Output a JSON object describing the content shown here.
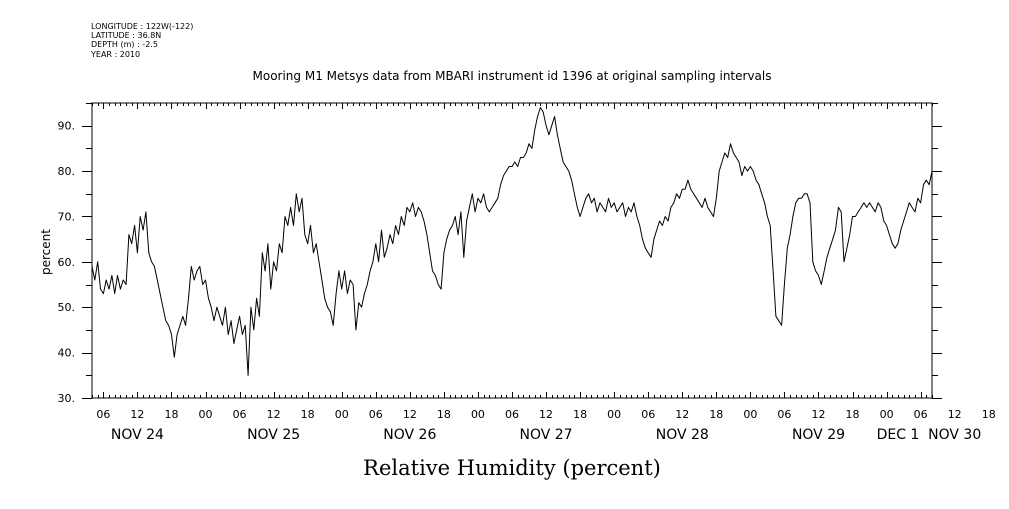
{
  "header": {
    "longitude": "LONGITUDE : 122W(-122)",
    "latitude": "LATITUDE : 36.8N",
    "depth": "DEPTH (m) : -2.5",
    "year": "YEAR : 2010"
  },
  "chart_data": {
    "type": "line",
    "title": "Mooring M1 Metsys data from MBARI instrument id 1396 at original sampling intervals",
    "ylabel": "percent",
    "xlabel": "Relative Humidity (percent)",
    "ylim": [
      30,
      95
    ],
    "xlim_hours_from_nov24_00": [
      4,
      152
    ],
    "y_ticks": [
      "30.",
      "40.",
      "50.",
      "60.",
      "70.",
      "80.",
      "90."
    ],
    "x_hour_ticks": [
      "06",
      "12",
      "18",
      "00",
      "06",
      "12",
      "18",
      "00",
      "06",
      "12",
      "18",
      "00",
      "06",
      "12",
      "18",
      "00",
      "06",
      "12",
      "18",
      "00",
      "06",
      "12",
      "18",
      "00",
      "06",
      "12",
      "18",
      "00",
      "06"
    ],
    "x_day_labels": [
      "NOV 24",
      "NOV 25",
      "NOV 26",
      "NOV 27",
      "NOV 28",
      "NOV 29",
      "NOV 30",
      "DEC 1"
    ],
    "grid": false,
    "series": [
      {
        "values": [
          [
            4.0,
            59
          ],
          [
            4.5,
            56
          ],
          [
            5.0,
            60
          ],
          [
            5.5,
            54
          ],
          [
            6.0,
            53
          ],
          [
            6.5,
            56
          ],
          [
            7.0,
            54
          ],
          [
            7.5,
            57
          ],
          [
            8.0,
            53
          ],
          [
            8.5,
            57
          ],
          [
            9.0,
            54
          ],
          [
            9.5,
            56
          ],
          [
            10.0,
            55
          ],
          [
            10.5,
            66
          ],
          [
            11.0,
            64
          ],
          [
            11.5,
            68
          ],
          [
            12.0,
            62
          ],
          [
            12.5,
            70
          ],
          [
            13.0,
            67
          ],
          [
            13.5,
            71
          ],
          [
            14.0,
            62
          ],
          [
            14.5,
            60
          ],
          [
            15.0,
            59
          ],
          [
            15.5,
            56
          ],
          [
            16.0,
            53
          ],
          [
            16.5,
            50
          ],
          [
            17.0,
            47
          ],
          [
            17.5,
            46
          ],
          [
            18.0,
            44
          ],
          [
            18.5,
            39
          ],
          [
            19.0,
            44
          ],
          [
            19.5,
            46
          ],
          [
            20.0,
            48
          ],
          [
            20.5,
            46
          ],
          [
            21.0,
            52
          ],
          [
            21.5,
            59
          ],
          [
            22.0,
            56
          ],
          [
            22.5,
            58
          ],
          [
            23.0,
            59
          ],
          [
            23.5,
            55
          ],
          [
            24.0,
            56
          ],
          [
            24.5,
            52
          ],
          [
            25.0,
            50
          ],
          [
            25.5,
            47
          ],
          [
            26.0,
            50
          ],
          [
            26.5,
            48
          ],
          [
            27.0,
            46
          ],
          [
            27.5,
            50
          ],
          [
            28.0,
            44
          ],
          [
            28.5,
            47
          ],
          [
            29.0,
            42
          ],
          [
            29.5,
            45
          ],
          [
            30.0,
            48
          ],
          [
            30.5,
            44
          ],
          [
            31.0,
            46
          ],
          [
            31.5,
            35
          ],
          [
            32.0,
            50
          ],
          [
            32.5,
            45
          ],
          [
            33.0,
            52
          ],
          [
            33.5,
            48
          ],
          [
            34.0,
            62
          ],
          [
            34.5,
            58
          ],
          [
            35.0,
            64
          ],
          [
            35.5,
            54
          ],
          [
            36.0,
            60
          ],
          [
            36.5,
            58
          ],
          [
            37.0,
            64
          ],
          [
            37.5,
            62
          ],
          [
            38.0,
            70
          ],
          [
            38.5,
            68
          ],
          [
            39.0,
            72
          ],
          [
            39.5,
            68
          ],
          [
            40.0,
            75
          ],
          [
            40.5,
            71
          ],
          [
            41.0,
            74
          ],
          [
            41.5,
            66
          ],
          [
            42.0,
            64
          ],
          [
            42.5,
            68
          ],
          [
            43.0,
            62
          ],
          [
            43.5,
            64
          ],
          [
            44.0,
            60
          ],
          [
            44.5,
            56
          ],
          [
            45.0,
            52
          ],
          [
            45.5,
            50
          ],
          [
            46.0,
            49
          ],
          [
            46.5,
            46
          ],
          [
            47.0,
            53
          ],
          [
            47.5,
            58
          ],
          [
            48.0,
            54
          ],
          [
            48.5,
            58
          ],
          [
            49.0,
            53
          ],
          [
            49.5,
            56
          ],
          [
            50.0,
            55
          ],
          [
            50.5,
            45
          ],
          [
            51.0,
            51
          ],
          [
            51.5,
            50
          ],
          [
            52.0,
            53
          ],
          [
            52.5,
            55
          ],
          [
            53.0,
            58
          ],
          [
            53.5,
            60
          ],
          [
            54.0,
            64
          ],
          [
            54.5,
            60
          ],
          [
            55.0,
            67
          ],
          [
            55.5,
            61
          ],
          [
            56.0,
            63
          ],
          [
            56.5,
            66
          ],
          [
            57.0,
            64
          ],
          [
            57.5,
            68
          ],
          [
            58.0,
            66
          ],
          [
            58.5,
            70
          ],
          [
            59.0,
            68
          ],
          [
            59.5,
            72
          ],
          [
            60.0,
            71
          ],
          [
            60.5,
            73
          ],
          [
            61.0,
            70
          ],
          [
            61.5,
            72
          ],
          [
            62.0,
            71
          ],
          [
            62.5,
            69
          ],
          [
            63.0,
            66
          ],
          [
            63.5,
            62
          ],
          [
            64.0,
            58
          ],
          [
            64.5,
            57
          ],
          [
            65.0,
            55
          ],
          [
            65.5,
            54
          ],
          [
            66.0,
            62
          ],
          [
            66.5,
            65
          ],
          [
            67.0,
            67
          ],
          [
            67.5,
            68
          ],
          [
            68.0,
            70
          ],
          [
            68.5,
            66
          ],
          [
            69.0,
            71
          ],
          [
            69.5,
            61
          ],
          [
            70.0,
            69
          ],
          [
            70.5,
            72
          ],
          [
            71.0,
            75
          ],
          [
            71.5,
            71
          ],
          [
            72.0,
            74
          ],
          [
            72.5,
            73
          ],
          [
            73.0,
            75
          ],
          [
            73.5,
            72
          ],
          [
            74.0,
            71
          ],
          [
            74.5,
            72
          ],
          [
            75.0,
            73
          ],
          [
            75.5,
            74
          ],
          [
            76.0,
            77
          ],
          [
            76.5,
            79
          ],
          [
            77.0,
            80
          ],
          [
            77.5,
            81
          ],
          [
            78.0,
            81
          ],
          [
            78.5,
            82
          ],
          [
            79.0,
            81
          ],
          [
            79.5,
            83
          ],
          [
            80.0,
            83
          ],
          [
            80.5,
            84
          ],
          [
            81.0,
            86
          ],
          [
            81.5,
            85
          ],
          [
            82.0,
            89
          ],
          [
            82.5,
            92
          ],
          [
            83.0,
            94
          ],
          [
            83.5,
            93
          ],
          [
            84.0,
            90
          ],
          [
            84.5,
            88
          ],
          [
            85.0,
            90
          ],
          [
            85.5,
            92
          ],
          [
            86.0,
            88
          ],
          [
            86.5,
            85
          ],
          [
            87.0,
            82
          ],
          [
            87.5,
            81
          ],
          [
            88.0,
            80
          ],
          [
            88.5,
            78
          ],
          [
            89.0,
            75
          ],
          [
            89.5,
            72
          ],
          [
            90.0,
            70
          ],
          [
            90.5,
            72
          ],
          [
            91.0,
            74
          ],
          [
            91.5,
            75
          ],
          [
            92.0,
            73
          ],
          [
            92.5,
            74
          ],
          [
            93.0,
            71
          ],
          [
            93.5,
            73
          ],
          [
            94.0,
            72
          ],
          [
            94.5,
            71
          ],
          [
            95.0,
            74
          ],
          [
            95.5,
            72
          ],
          [
            96.0,
            73
          ],
          [
            96.5,
            71
          ],
          [
            97.0,
            72
          ],
          [
            97.5,
            73
          ],
          [
            98.0,
            70
          ],
          [
            98.5,
            72
          ],
          [
            99.0,
            71
          ],
          [
            99.5,
            73
          ],
          [
            100.0,
            70
          ],
          [
            100.5,
            68
          ],
          [
            101.0,
            65
          ],
          [
            101.5,
            63
          ],
          [
            102.0,
            62
          ],
          [
            102.5,
            61
          ],
          [
            103.0,
            65
          ],
          [
            103.5,
            67
          ],
          [
            104.0,
            69
          ],
          [
            104.5,
            68
          ],
          [
            105.0,
            70
          ],
          [
            105.5,
            69
          ],
          [
            106.0,
            72
          ],
          [
            106.5,
            73
          ],
          [
            107.0,
            75
          ],
          [
            107.5,
            74
          ],
          [
            108.0,
            76
          ],
          [
            108.5,
            76
          ],
          [
            109.0,
            78
          ],
          [
            109.5,
            76
          ],
          [
            110.0,
            75
          ],
          [
            110.5,
            74
          ],
          [
            111.0,
            73
          ],
          [
            111.5,
            72
          ],
          [
            112.0,
            74
          ],
          [
            112.5,
            72
          ],
          [
            113.0,
            71
          ],
          [
            113.5,
            70
          ],
          [
            114.0,
            74
          ],
          [
            114.5,
            80
          ],
          [
            115.0,
            82
          ],
          [
            115.5,
            84
          ],
          [
            116.0,
            83
          ],
          [
            116.5,
            86
          ],
          [
            117.0,
            84
          ],
          [
            117.5,
            83
          ],
          [
            118.0,
            82
          ],
          [
            118.5,
            79
          ],
          [
            119.0,
            81
          ],
          [
            119.5,
            80
          ],
          [
            120.0,
            81
          ],
          [
            120.5,
            80
          ],
          [
            121.0,
            78
          ],
          [
            121.5,
            77
          ],
          [
            122.0,
            75
          ],
          [
            122.5,
            73
          ],
          [
            123.0,
            70
          ],
          [
            123.5,
            68
          ],
          [
            124.0,
            58
          ],
          [
            124.5,
            48
          ],
          [
            125.0,
            47
          ],
          [
            125.5,
            46
          ],
          [
            126.0,
            55
          ],
          [
            126.5,
            63
          ],
          [
            127.0,
            66
          ],
          [
            127.5,
            70
          ],
          [
            128.0,
            73
          ],
          [
            128.5,
            74
          ],
          [
            129.0,
            74
          ],
          [
            129.5,
            75
          ],
          [
            130.0,
            75
          ],
          [
            130.5,
            73
          ],
          [
            131.0,
            60
          ],
          [
            131.5,
            58
          ],
          [
            132.0,
            57
          ],
          [
            132.5,
            55
          ],
          [
            133.0,
            58
          ],
          [
            133.5,
            61
          ],
          [
            134.0,
            63
          ],
          [
            134.5,
            65
          ],
          [
            135.0,
            67
          ],
          [
            135.5,
            72
          ],
          [
            136.0,
            71
          ],
          [
            136.5,
            60
          ],
          [
            137.0,
            63
          ],
          [
            137.5,
            66
          ],
          [
            138.0,
            70
          ],
          [
            138.5,
            70
          ],
          [
            139.0,
            71
          ],
          [
            139.5,
            72
          ],
          [
            140.0,
            73
          ],
          [
            140.5,
            72
          ],
          [
            141.0,
            73
          ],
          [
            141.5,
            72
          ],
          [
            142.0,
            71
          ],
          [
            142.5,
            73
          ],
          [
            143.0,
            72
          ],
          [
            143.5,
            69
          ],
          [
            144.0,
            68
          ],
          [
            144.5,
            66
          ],
          [
            145.0,
            64
          ],
          [
            145.5,
            63
          ],
          [
            146.0,
            64
          ],
          [
            146.5,
            67
          ],
          [
            147.0,
            69
          ],
          [
            147.5,
            71
          ],
          [
            148.0,
            73
          ],
          [
            148.5,
            72
          ],
          [
            149.0,
            71
          ],
          [
            149.5,
            74
          ],
          [
            150.0,
            73
          ],
          [
            150.5,
            77
          ],
          [
            151.0,
            78
          ],
          [
            151.5,
            77
          ],
          [
            152.0,
            80
          ]
        ]
      }
    ]
  }
}
